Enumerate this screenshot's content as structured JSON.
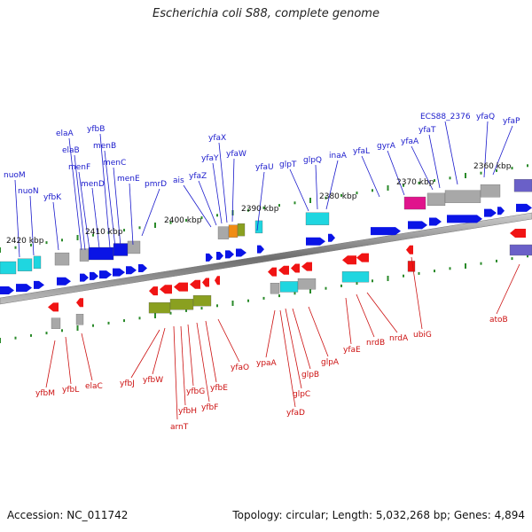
{
  "title": "Escherichia coli S88, complete genome",
  "footer": {
    "accession": "Accession: NC_011742",
    "summary": "Topology: circular; Length: 5,032,268 bp; Genes: 4,894"
  },
  "colors": {
    "backbone": "#8a8a8a",
    "forward_gene": "#0a14e6",
    "reverse_gene": "#f01414",
    "forward_label": "#1a1acc",
    "reverse_label": "#cc1010",
    "tick": "#2a8a2a",
    "cds_cyan": "#1fd6e0",
    "cds_gray": "#a8a8a8",
    "cds_magenta": "#e0148c",
    "cds_olive": "#8aa020",
    "cds_orange": "#f08c14",
    "cds_purple": "#6a60c8"
  },
  "scale_labels": [
    "2420 kbp",
    "2410 kbp",
    "2400 kbp",
    "2390 kbp",
    "2380 kbp",
    "2370 kbp",
    "2360 kbp"
  ],
  "forward_labels": [
    "nuoM",
    "nuoN",
    "yfbK",
    "elaA",
    "elaB",
    "menF",
    "menD",
    "yfbB",
    "menB",
    "menC",
    "menE",
    "pmrD",
    "ais",
    "yfaZ",
    "yfaY",
    "yfaX",
    "yfaW",
    "yfaU",
    "glpT",
    "glpQ",
    "inaA",
    "yfaL",
    "gyrA",
    "yfaA",
    "yfaT",
    "ECS88_2376",
    "yfaQ",
    "yfaP"
  ],
  "reverse_labels": [
    "yfbM",
    "yfbL",
    "elaC",
    "yfbJ",
    "yfbW",
    "arnT",
    "yfbH",
    "yfbG",
    "yfbF",
    "yfbE",
    "yfaO",
    "ypaA",
    "glpC",
    "yfaD",
    "glpB",
    "glpA",
    "yfaE",
    "nrdB",
    "nrdA",
    "ubiG",
    "atoB"
  ]
}
